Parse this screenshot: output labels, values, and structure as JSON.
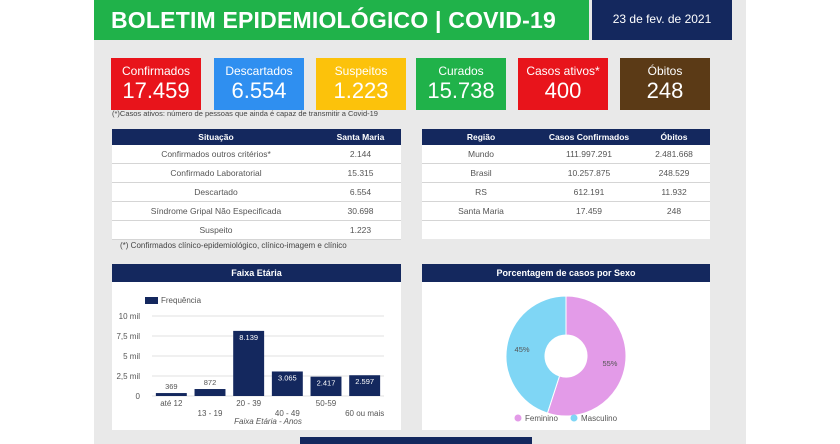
{
  "header": {
    "title": "BOLETIM EPIDEMIOLÓGICO | COVID-19",
    "date": "23 de fev. de 2021"
  },
  "cards": [
    {
      "label": "Confirmados",
      "value": "17.459",
      "color": "#e8141b"
    },
    {
      "label": "Descartados",
      "value": "6.554",
      "color": "#2f8ff0"
    },
    {
      "label": "Suspeitos",
      "value": "1.223",
      "color": "#fcc20b"
    },
    {
      "label": "Curados",
      "value": "15.738",
      "color": "#20b24a"
    },
    {
      "label": "Casos ativos*",
      "value": "400",
      "color": "#e8141b"
    },
    {
      "label": "Óbitos",
      "value": "248",
      "color": "#5b3a16"
    }
  ],
  "cards_note": "(*)Casos ativos: número de pessoas que ainda é capaz de transmitir a Covid-19",
  "situation_table": {
    "headers": [
      "Situação",
      "Santa Maria"
    ],
    "rows": [
      [
        "Confirmados outros critérios*",
        "2.144"
      ],
      [
        "Confirmado Laboratorial",
        "15.315"
      ],
      [
        "Descartado",
        "6.554"
      ],
      [
        "Síndrome Gripal Não Especificada",
        "30.698"
      ],
      [
        "Suspeito",
        "1.223"
      ]
    ],
    "footnote": "(*) Confirmados clínico-epidemiológico, clínico-imagem e clínico"
  },
  "region_table": {
    "headers": [
      "Região",
      "Casos Confirmados",
      "Óbitos"
    ],
    "rows": [
      [
        "Mundo",
        "111.997.291",
        "2.481.668"
      ],
      [
        "Brasil",
        "10.257.875",
        "248.529"
      ],
      [
        "RS",
        "612.191",
        "11.932"
      ],
      [
        "Santa Maria",
        "17.459",
        "248"
      ]
    ]
  },
  "chart_data": [
    {
      "type": "bar",
      "title": "Faixa Etária",
      "xlabel": "Faixa Etária - Anos",
      "ylabel": "",
      "legend": "top-left",
      "categories": [
        "até 12",
        "13 - 19",
        "20 - 39",
        "40 - 49",
        "50-59",
        "60 ou mais"
      ],
      "series": [
        {
          "name": "Frequência",
          "values": [
            369,
            872,
            8139,
            3065,
            2417,
            2597
          ]
        }
      ],
      "value_labels": [
        "369",
        "872",
        "8.139",
        "3.065",
        "2.417",
        "2.597"
      ],
      "yticks": [
        "0",
        "2,5 mil",
        "5 mil",
        "7,5 mil",
        "10 mil"
      ],
      "ylim": [
        0,
        10000
      ],
      "grid": true,
      "bar_color": "#14285e"
    },
    {
      "type": "pie",
      "title": "Porcentagem de casos por Sexo",
      "categories": [
        "Feminino",
        "Masculino"
      ],
      "values": [
        55,
        45
      ],
      "labels": [
        "55%",
        "45%"
      ],
      "colors": [
        "#e39be8",
        "#7fd6f5"
      ],
      "legend": "bottom"
    }
  ]
}
